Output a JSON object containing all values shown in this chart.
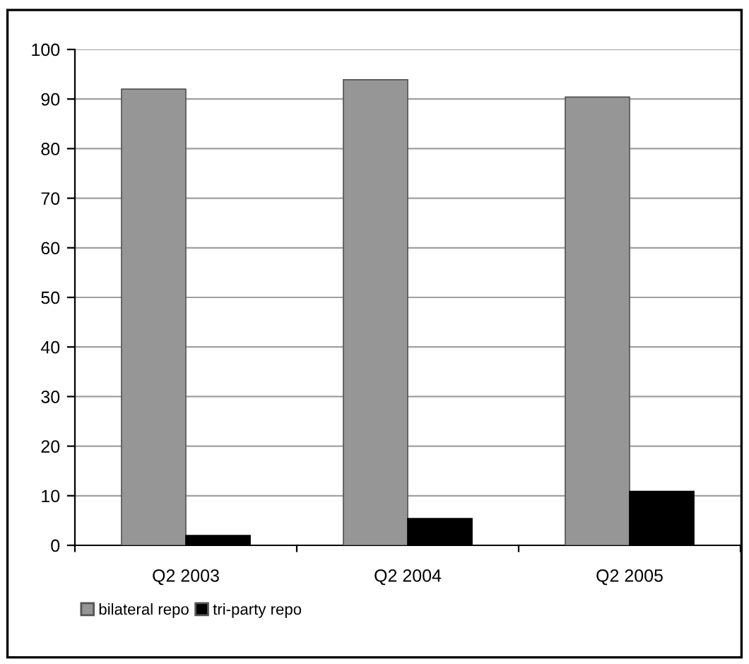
{
  "chart_data": {
    "type": "bar",
    "categories": [
      "Q2 2003",
      "Q2 2004",
      "Q2 2005"
    ],
    "series": [
      {
        "name": "bilateral repo",
        "color": "#969696",
        "values": [
          92,
          93.9,
          90.4
        ]
      },
      {
        "name": "tri-party repo",
        "color": "#000000",
        "values": [
          2,
          5.4,
          10.9
        ]
      }
    ],
    "ylim": [
      0,
      100
    ],
    "yticks": [
      0,
      10,
      20,
      30,
      40,
      50,
      60,
      70,
      80,
      90,
      100
    ],
    "grid": "y",
    "legend": "bottom left"
  }
}
